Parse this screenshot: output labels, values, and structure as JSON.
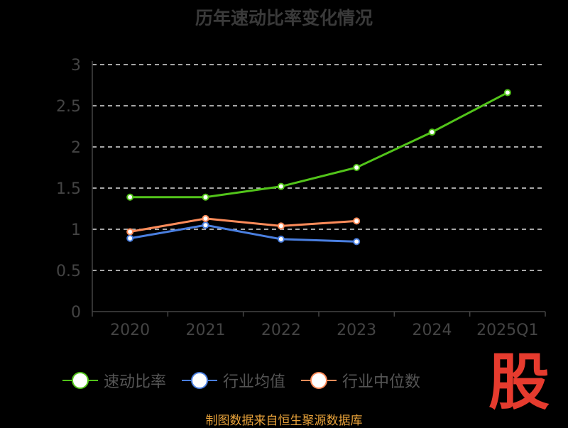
{
  "chart_data": {
    "type": "line",
    "title": "历年速动比率变化情况",
    "categories": [
      "2020",
      "2021",
      "2022",
      "2023",
      "2024",
      "2025Q1"
    ],
    "ylim": [
      0,
      3
    ],
    "yticks": [
      "0",
      "0.5",
      "1",
      "1.5",
      "2",
      "2.5",
      "3"
    ],
    "grid": true,
    "legend_position": "bottom",
    "series": [
      {
        "name": "速动比率",
        "color": "#52c41a",
        "values": [
          1.39,
          1.39,
          1.52,
          1.75,
          2.18,
          2.66
        ]
      },
      {
        "name": "行业均值",
        "color": "#4a7fe0",
        "values": [
          0.89,
          1.05,
          0.88,
          0.85,
          null,
          null
        ]
      },
      {
        "name": "行业中位数",
        "color": "#ff8c5a",
        "values": [
          0.97,
          1.13,
          1.04,
          1.1,
          null,
          null
        ]
      }
    ]
  },
  "source": "制图数据来自恒生聚源数据库",
  "logo_text": "股"
}
